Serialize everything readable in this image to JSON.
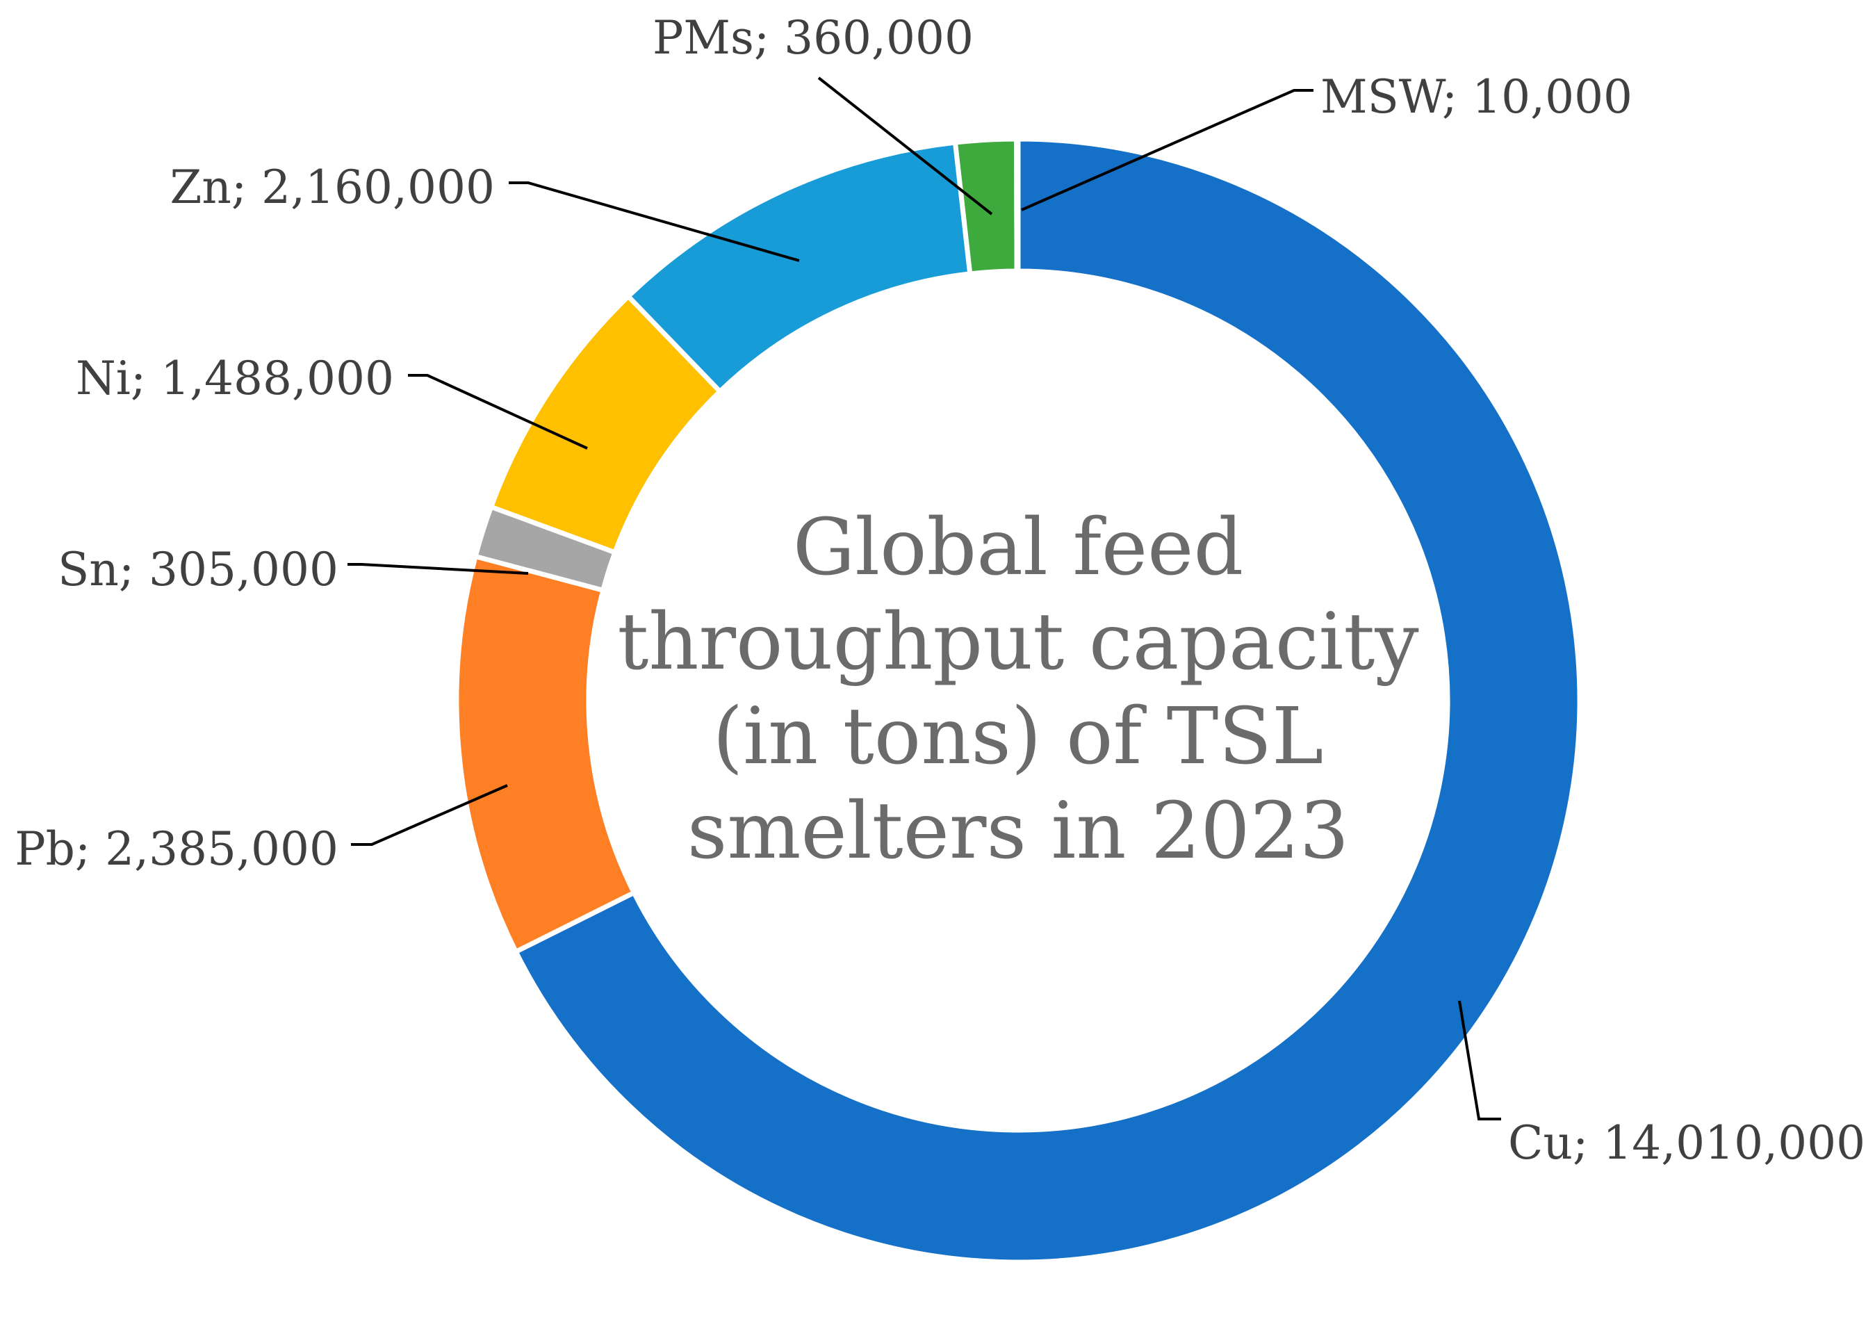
{
  "chart_data": {
    "type": "pie",
    "variant": "donut",
    "title": "Global feed throughput capacity (in tons) of TSL smelters in 2023",
    "title_lines": [
      "Global feed",
      "throughput capacity",
      "(in tons) of TSL",
      "smelters in 2023"
    ],
    "slices": [
      {
        "label": "Cu",
        "value": 14010000,
        "value_text": "14,010,000",
        "color": "#1570C8"
      },
      {
        "label": "Pb",
        "value": 2385000,
        "value_text": "2,385,000",
        "color": "#FF7F24"
      },
      {
        "label": "Sn",
        "value": 305000,
        "value_text": "305,000",
        "color": "#A6A6A6"
      },
      {
        "label": "Ni",
        "value": 1488000,
        "value_text": "1,488,000",
        "color": "#FFC000"
      },
      {
        "label": "Zn",
        "value": 2160000,
        "value_text": "2,160,000",
        "color": "#179CD8"
      },
      {
        "label": "PMs",
        "value": 360000,
        "value_text": "360,000",
        "color": "#3EAA3E"
      },
      {
        "label": "MSW",
        "value": 10000,
        "value_text": "10,000",
        "color": "#1570C8"
      }
    ],
    "label_format": "{label}; {value_text}",
    "start": "top",
    "direction": "clockwise",
    "legend": "none"
  }
}
